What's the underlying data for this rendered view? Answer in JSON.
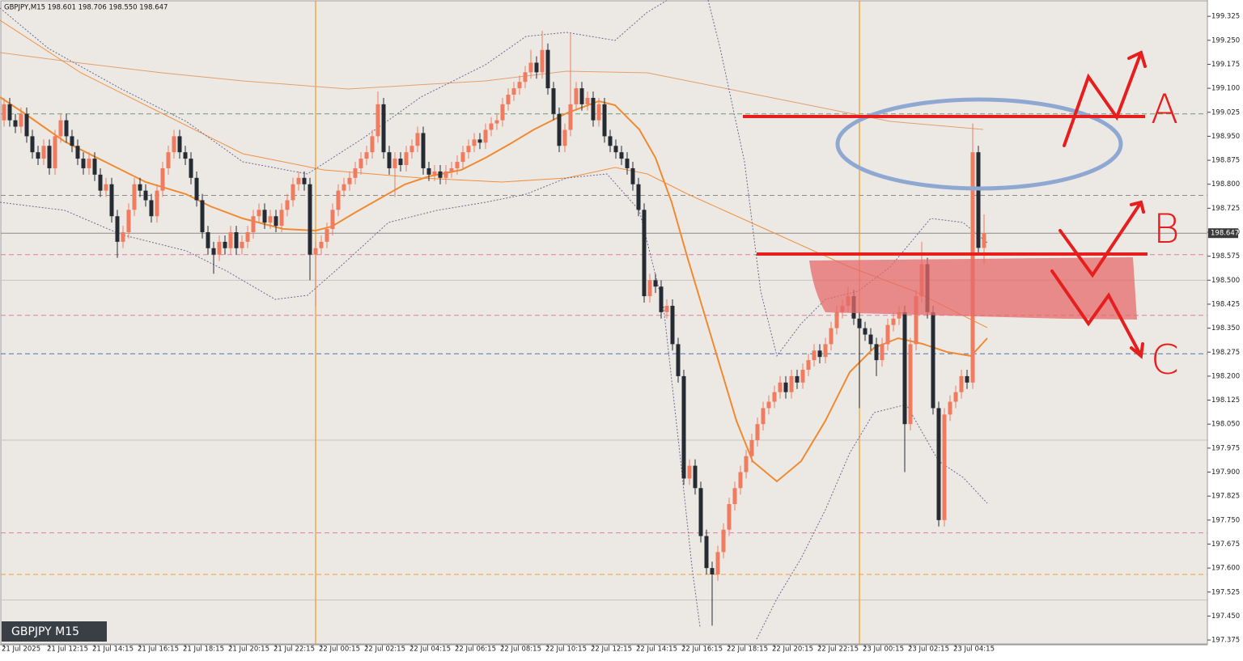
{
  "chart_data": {
    "type": "candlestick",
    "title": "GBPJPY,M15  198.601 198.706 198.550 198.647",
    "watermark": "GBPJPY M15",
    "categories": [
      "21 Jul 2025",
      null,
      null,
      null,
      null,
      null,
      null,
      null,
      "21 Jul 12:15",
      null,
      null,
      null,
      null,
      null,
      null,
      null,
      "21 Jul 14:15",
      null,
      null,
      null,
      null,
      null,
      null,
      null,
      "21 Jul 16:15",
      null,
      null,
      null,
      null,
      null,
      null,
      null,
      "21 Jul 18:15",
      null,
      null,
      null,
      null,
      null,
      null,
      null,
      "21 Jul 20:15",
      null,
      null,
      null,
      null,
      null,
      null,
      null,
      "21 Jul 22:15",
      null,
      null,
      null,
      null,
      null,
      null,
      null,
      "22 Jul 00:15",
      null,
      null,
      null,
      null,
      null,
      null,
      null,
      "22 Jul 02:15",
      null,
      null,
      null,
      null,
      null,
      null,
      null,
      "22 Jul 04:15",
      null,
      null,
      null,
      null,
      null,
      null,
      null,
      "22 Jul 06:15",
      null,
      null,
      null,
      null,
      null,
      null,
      null,
      "22 Jul 08:15",
      null,
      null,
      null,
      null,
      null,
      null,
      null,
      "22 Jul 10:15",
      null,
      null,
      null,
      null,
      null,
      null,
      null,
      "22 Jul 12:15",
      null,
      null,
      null,
      null,
      null,
      null,
      null,
      "22 Jul 14:15",
      null,
      null,
      null,
      null,
      null,
      null,
      null,
      "22 Jul 16:15",
      null,
      null,
      null,
      null,
      null,
      null,
      null,
      "22 Jul 18:15",
      null,
      null,
      null,
      null,
      null,
      null,
      null,
      "22 Jul 20:15",
      null,
      null,
      null,
      null,
      null,
      null,
      null,
      "22 Jul 22:15",
      null,
      null,
      null,
      null,
      null,
      null,
      null,
      "23 Jul 00:15",
      null,
      null,
      null,
      null,
      null,
      null,
      null,
      "23 Jul 02:15",
      null,
      null,
      null,
      null,
      null,
      null,
      null,
      "23 Jul 04:15",
      null,
      null,
      null,
      null,
      null
    ],
    "open": [
      199.0,
      199.05,
      199.0,
      198.98,
      199.02,
      198.95,
      198.9,
      198.88,
      198.92,
      198.85,
      198.95,
      199.0,
      198.95,
      198.92,
      198.88,
      198.85,
      198.88,
      198.83,
      198.78,
      198.8,
      198.7,
      198.62,
      198.65,
      198.72,
      198.8,
      198.78,
      198.75,
      198.7,
      198.78,
      198.85,
      198.9,
      198.95,
      198.9,
      198.88,
      198.82,
      198.75,
      198.65,
      198.6,
      198.58,
      198.62,
      198.6,
      198.65,
      198.6,
      198.62,
      198.65,
      198.7,
      198.72,
      198.68,
      198.7,
      198.67,
      198.72,
      198.75,
      198.8,
      198.82,
      198.8,
      198.58,
      198.6,
      198.62,
      198.66,
      198.72,
      198.78,
      198.8,
      198.82,
      198.85,
      198.88,
      198.9,
      198.95,
      199.05,
      198.9,
      198.85,
      198.88,
      198.86,
      198.9,
      198.92,
      198.96,
      198.85,
      198.83,
      198.84,
      198.82,
      198.84,
      198.85,
      198.87,
      198.9,
      198.92,
      198.94,
      198.93,
      198.97,
      198.99,
      199.0,
      199.05,
      199.08,
      199.1,
      199.12,
      199.15,
      199.18,
      199.15,
      199.22,
      199.1,
      199.02,
      198.92,
      198.97,
      199.05,
      199.1,
      199.05,
      199.07,
      199.0,
      199.05,
      198.95,
      198.92,
      198.9,
      198.88,
      198.85,
      198.8,
      198.72,
      198.45,
      198.5,
      198.48,
      198.4,
      198.42,
      198.3,
      198.2,
      197.88,
      197.92,
      197.85,
      197.7,
      197.6,
      197.58,
      197.65,
      197.72,
      197.8,
      197.85,
      197.9,
      197.95,
      198.0,
      198.05,
      198.1,
      198.12,
      198.15,
      198.18,
      198.15,
      198.2,
      198.18,
      198.22,
      198.25,
      198.28,
      198.26,
      198.3,
      198.35,
      198.4,
      198.42,
      198.45,
      198.38,
      198.35,
      198.33,
      198.3,
      198.25,
      198.3,
      198.36,
      198.38,
      198.4,
      198.05,
      198.3,
      198.45,
      198.55,
      198.4,
      198.1,
      197.75,
      198.08,
      198.12,
      198.15,
      198.2,
      198.18,
      198.9,
      198.601
    ],
    "high": [
      199.07,
      199.07,
      199.02,
      199.04,
      199.04,
      198.97,
      198.92,
      198.94,
      198.94,
      198.97,
      199.02,
      199.02,
      198.97,
      198.94,
      198.9,
      198.9,
      198.9,
      198.85,
      198.82,
      198.82,
      198.72,
      198.67,
      198.74,
      198.82,
      198.82,
      198.8,
      198.77,
      198.8,
      198.87,
      198.92,
      198.97,
      198.97,
      198.92,
      198.9,
      198.84,
      198.77,
      198.67,
      198.62,
      198.64,
      198.64,
      198.67,
      198.67,
      198.64,
      198.67,
      198.72,
      198.74,
      198.74,
      198.72,
      198.72,
      198.74,
      198.77,
      198.82,
      198.84,
      198.84,
      198.82,
      198.62,
      198.64,
      198.68,
      198.74,
      198.8,
      198.82,
      198.84,
      198.87,
      198.9,
      198.92,
      198.97,
      199.09,
      199.07,
      198.92,
      198.9,
      198.9,
      198.92,
      198.94,
      198.98,
      198.98,
      198.87,
      198.86,
      198.86,
      198.86,
      198.87,
      198.89,
      198.92,
      198.94,
      198.96,
      198.96,
      198.99,
      199.01,
      199.02,
      199.07,
      199.1,
      199.12,
      199.14,
      199.17,
      199.22,
      199.2,
      199.28,
      199.24,
      199.12,
      199.04,
      198.99,
      199.27,
      199.12,
      199.12,
      199.09,
      199.09,
      199.07,
      199.07,
      198.97,
      198.94,
      198.92,
      198.9,
      198.87,
      198.82,
      198.74,
      198.52,
      198.52,
      198.5,
      198.44,
      198.44,
      198.32,
      198.22,
      197.94,
      197.94,
      197.87,
      197.72,
      197.62,
      197.67,
      197.74,
      197.82,
      197.87,
      197.92,
      197.97,
      198.02,
      198.07,
      198.12,
      198.14,
      198.17,
      198.2,
      198.2,
      198.22,
      198.22,
      198.24,
      198.27,
      198.3,
      198.3,
      198.32,
      198.37,
      198.42,
      198.44,
      198.48,
      198.47,
      198.4,
      198.37,
      198.35,
      198.32,
      198.32,
      198.38,
      198.4,
      198.42,
      198.42,
      198.32,
      198.47,
      198.62,
      198.57,
      198.42,
      198.12,
      198.1,
      198.14,
      198.17,
      198.22,
      198.22,
      198.99,
      198.92,
      198.706
    ],
    "low": [
      198.98,
      198.98,
      198.96,
      198.96,
      198.93,
      198.88,
      198.86,
      198.86,
      198.83,
      198.83,
      198.93,
      198.93,
      198.9,
      198.86,
      198.83,
      198.83,
      198.81,
      198.76,
      198.76,
      198.68,
      198.57,
      198.6,
      198.63,
      198.7,
      198.76,
      198.73,
      198.68,
      198.68,
      198.76,
      198.83,
      198.88,
      198.88,
      198.86,
      198.8,
      198.73,
      198.63,
      198.58,
      198.52,
      198.56,
      198.58,
      198.58,
      198.58,
      198.58,
      198.6,
      198.63,
      198.68,
      198.66,
      198.66,
      198.65,
      198.65,
      198.7,
      198.73,
      198.78,
      198.78,
      198.5,
      198.42,
      198.58,
      198.6,
      198.64,
      198.7,
      198.76,
      198.78,
      198.8,
      198.83,
      198.86,
      198.88,
      198.93,
      198.88,
      198.83,
      198.76,
      198.84,
      198.84,
      198.88,
      198.9,
      198.83,
      198.81,
      198.81,
      198.8,
      198.8,
      198.82,
      198.83,
      198.85,
      198.88,
      198.9,
      198.91,
      198.91,
      198.95,
      198.97,
      198.98,
      199.03,
      199.06,
      199.08,
      199.1,
      199.13,
      199.13,
      199.13,
      199.08,
      199.0,
      198.9,
      198.9,
      198.95,
      199.03,
      199.03,
      199.03,
      198.98,
      198.98,
      198.93,
      198.9,
      198.88,
      198.86,
      198.83,
      198.78,
      198.7,
      198.43,
      198.43,
      198.46,
      198.38,
      198.38,
      198.28,
      198.18,
      197.86,
      197.86,
      197.83,
      197.68,
      197.58,
      197.42,
      197.56,
      197.63,
      197.7,
      197.78,
      197.83,
      197.88,
      197.93,
      197.98,
      198.03,
      198.08,
      198.1,
      198.13,
      198.13,
      198.13,
      198.16,
      198.16,
      198.2,
      198.23,
      198.24,
      198.24,
      198.28,
      198.33,
      198.38,
      198.4,
      198.36,
      198.1,
      198.31,
      198.28,
      198.2,
      198.23,
      198.28,
      198.34,
      198.36,
      197.9,
      198.03,
      198.28,
      198.43,
      198.38,
      198.08,
      197.73,
      197.73,
      198.06,
      198.1,
      198.13,
      198.16,
      198.16,
      198.58,
      198.55
    ],
    "close": [
      199.05,
      199.0,
      198.98,
      199.02,
      198.95,
      198.9,
      198.88,
      198.92,
      198.85,
      198.95,
      199.0,
      198.95,
      198.92,
      198.88,
      198.85,
      198.88,
      198.83,
      198.78,
      198.8,
      198.7,
      198.62,
      198.65,
      198.72,
      198.8,
      198.78,
      198.75,
      198.7,
      198.78,
      198.85,
      198.9,
      198.95,
      198.9,
      198.88,
      198.82,
      198.75,
      198.65,
      198.6,
      198.58,
      198.62,
      198.6,
      198.65,
      198.6,
      198.62,
      198.65,
      198.7,
      198.72,
      198.68,
      198.7,
      198.67,
      198.72,
      198.75,
      198.8,
      198.82,
      198.8,
      198.58,
      198.6,
      198.62,
      198.66,
      198.72,
      198.78,
      198.8,
      198.82,
      198.85,
      198.88,
      198.9,
      198.95,
      199.05,
      198.9,
      198.85,
      198.88,
      198.86,
      198.9,
      198.92,
      198.96,
      198.85,
      198.83,
      198.84,
      198.82,
      198.84,
      198.85,
      198.87,
      198.9,
      198.92,
      198.94,
      198.93,
      198.97,
      198.99,
      199.0,
      199.05,
      199.08,
      199.1,
      199.12,
      199.15,
      199.18,
      199.15,
      199.22,
      199.1,
      199.02,
      198.92,
      198.97,
      199.05,
      199.1,
      199.05,
      199.07,
      199.0,
      199.05,
      198.95,
      198.92,
      198.9,
      198.88,
      198.85,
      198.8,
      198.72,
      198.45,
      198.5,
      198.48,
      198.4,
      198.42,
      198.3,
      198.2,
      197.88,
      197.92,
      197.85,
      197.7,
      197.6,
      197.58,
      197.65,
      197.72,
      197.8,
      197.85,
      197.9,
      197.95,
      198.0,
      198.05,
      198.1,
      198.12,
      198.15,
      198.18,
      198.15,
      198.2,
      198.18,
      198.22,
      198.25,
      198.28,
      198.26,
      198.3,
      198.35,
      198.4,
      198.42,
      198.45,
      198.38,
      198.35,
      198.33,
      198.3,
      198.25,
      198.3,
      198.36,
      198.38,
      198.4,
      198.05,
      198.3,
      198.45,
      198.55,
      198.4,
      198.1,
      197.75,
      198.08,
      198.12,
      198.15,
      198.2,
      198.18,
      198.9,
      198.601,
      198.647
    ],
    "up_color": "#f07b5e",
    "down_color": "#262a33",
    "ylim": [
      197.36,
      199.376
    ],
    "yticks": [
      197.375,
      {
        "value": 197.45,
        "label": "197.450"
      },
      197.525,
      {
        "value": 197.6,
        "label": "197.600"
      },
      197.675,
      {
        "value": 197.75,
        "label": "197.750"
      },
      197.825,
      {
        "value": 197.9,
        "label": "197.900"
      },
      197.975,
      {
        "value": 198.05,
        "label": "198.050"
      },
      198.125,
      {
        "value": 198.2,
        "label": "198.200"
      },
      198.275,
      {
        "value": 198.35,
        "label": "198.350"
      },
      198.425,
      {
        "value": 198.5,
        "label": "198.500"
      },
      198.575,
      {
        "value": 198.65,
        "label": "198.650"
      },
      198.725,
      {
        "value": 198.8,
        "label": "198.800"
      },
      198.875,
      {
        "value": 198.95,
        "label": "198.950"
      },
      199.025,
      {
        "value": 199.1,
        "label": "199.100"
      },
      199.175,
      {
        "value": 199.25,
        "label": "199.250"
      },
      199.325
    ],
    "last_price": 198.647,
    "hlines": [
      {
        "value": 199.02,
        "color": "#6a9a74",
        "style": "dashed"
      },
      {
        "value": 198.765,
        "color": "#8a8a8a",
        "style": "dashed"
      },
      {
        "value": 198.58,
        "color": "#e27aa6",
        "style": "dashed"
      },
      {
        "value": 198.39,
        "color": "#e27aa6",
        "style": "dashed"
      },
      {
        "value": 198.27,
        "color": "#4a74b0",
        "style": "dashed"
      },
      {
        "value": 197.71,
        "color": "#e27aa6",
        "style": "dashed"
      },
      {
        "value": 197.58,
        "color": "#f0a030",
        "style": "dashed"
      },
      {
        "value": 198.5,
        "color": "#c8c4c0",
        "style": "solid"
      },
      {
        "value": 198.0,
        "color": "#c8c4c0",
        "style": "solid"
      },
      {
        "value": 197.5,
        "color": "#c8c4c0",
        "style": "solid"
      }
    ],
    "annotations": [
      "A",
      "B",
      "C"
    ]
  }
}
